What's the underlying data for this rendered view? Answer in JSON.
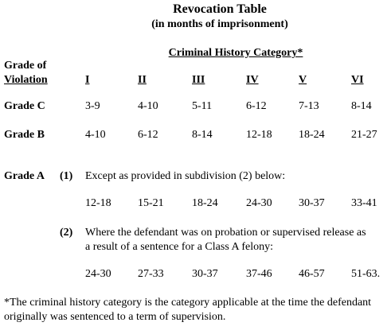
{
  "title": "Revocation Table",
  "subtitle": "(in months of imprisonment)",
  "column_group_header": "Criminal History Category*",
  "row_header": [
    "Grade of",
    "Violation"
  ],
  "columns": [
    "I",
    "II",
    "III",
    "IV",
    "V",
    "VI"
  ],
  "rows": [
    {
      "grade": "Grade C",
      "values": [
        "3-9",
        "4-10",
        "5-11",
        "6-12",
        "7-13",
        "8-14"
      ]
    },
    {
      "grade": "Grade B",
      "values": [
        "4-10",
        "6-12",
        "8-14",
        "12-18",
        "18-24",
        "21-27"
      ]
    }
  ],
  "grade_a": {
    "grade": "Grade A",
    "subdivisions": [
      {
        "number": "(1)",
        "text": [
          "Except as provided in subdivision (2) below:"
        ],
        "values": [
          "12-18",
          "15-21",
          "18-24",
          "24-30",
          "30-37",
          "33-41"
        ]
      },
      {
        "number": "(2)",
        "text": [
          "Where the defendant was on probation or supervised release as",
          "a result of a sentence for a Class A felony:"
        ],
        "values": [
          "24-30",
          "27-33",
          "30-37",
          "37-46",
          "46-57",
          "51-63."
        ]
      }
    ]
  },
  "footnote": [
    "*The criminal history category is the category applicable at the time the defendant",
    "originally was sentenced to a term of supervision."
  ]
}
